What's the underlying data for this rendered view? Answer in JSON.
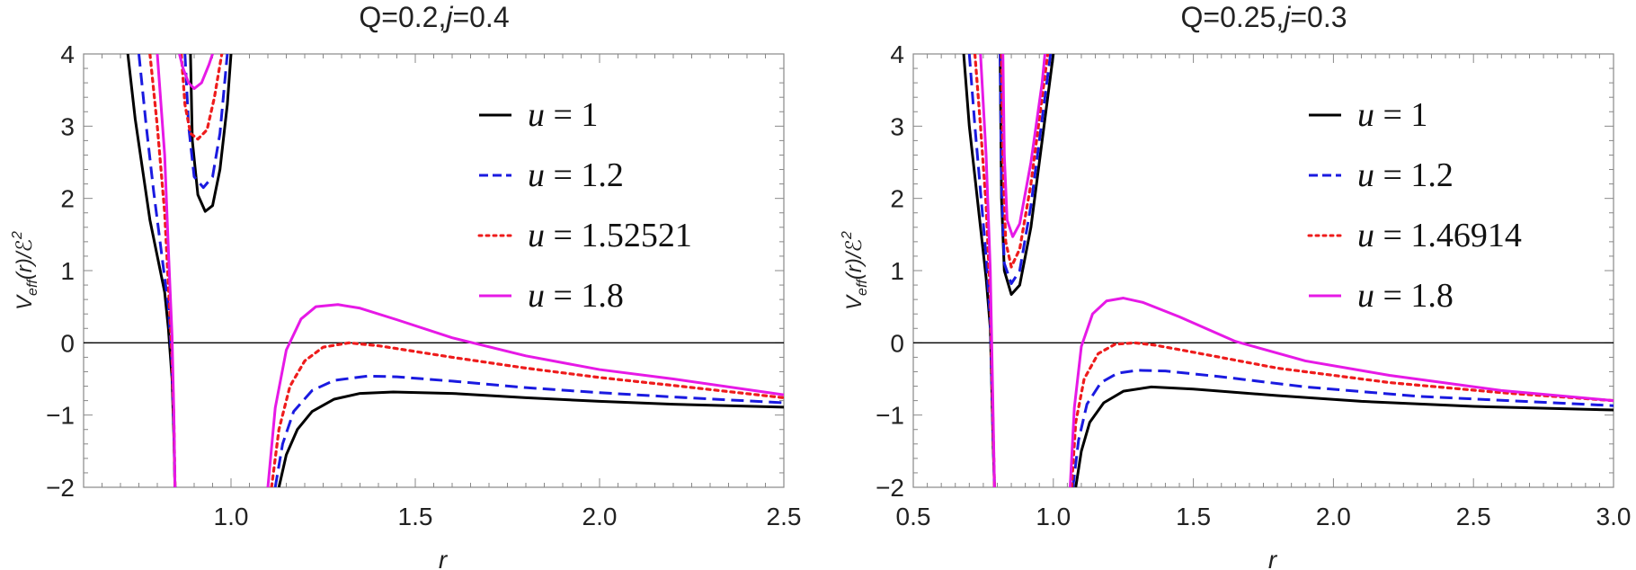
{
  "chart_data": [
    {
      "type": "line",
      "title": "Q=0.2, j=0.4",
      "title_parts": {
        "q": "Q=0.2,",
        "j": "j",
        "jval": "=0.4"
      },
      "xlabel": "r",
      "ylabel": "V_eff(r)/ℰ²",
      "xlim": [
        0.6,
        2.5
      ],
      "ylim": [
        -2,
        4
      ],
      "xticks": [
        "1.0",
        "1.5",
        "2.0",
        "2.5"
      ],
      "yticks": [
        "−2",
        "−1",
        "0",
        "1",
        "2",
        "3",
        "4"
      ],
      "legend_position": "top-right",
      "grid": false,
      "series": [
        {
          "name": "u = 1",
          "color": "#000000",
          "dash": "solid",
          "inner_branch": [
            [
              0.72,
              4.0
            ],
            [
              0.74,
              3.1
            ],
            [
              0.76,
              2.4
            ],
            [
              0.78,
              1.7
            ],
            [
              0.8,
              1.2
            ],
            [
              0.82,
              0.7
            ],
            [
              0.83,
              0.2
            ],
            [
              0.84,
              -0.5
            ],
            [
              0.845,
              -1.3
            ],
            [
              0.848,
              -2.0
            ]
          ],
          "well": [
            [
              0.89,
              4.0
            ],
            [
              0.895,
              2.8
            ],
            [
              0.91,
              2.05
            ],
            [
              0.93,
              1.82
            ],
            [
              0.95,
              1.9
            ],
            [
              0.97,
              2.4
            ],
            [
              0.99,
              3.3
            ],
            [
              1.0,
              4.0
            ]
          ],
          "outer_branch": [
            [
              1.13,
              -2.0
            ],
            [
              1.15,
              -1.55
            ],
            [
              1.18,
              -1.2
            ],
            [
              1.22,
              -0.95
            ],
            [
              1.28,
              -0.78
            ],
            [
              1.35,
              -0.7
            ],
            [
              1.44,
              -0.68
            ],
            [
              1.6,
              -0.7
            ],
            [
              1.8,
              -0.76
            ],
            [
              2.0,
              -0.81
            ],
            [
              2.2,
              -0.85
            ],
            [
              2.5,
              -0.89
            ]
          ]
        },
        {
          "name": "u = 1.2",
          "color": "#1a1ae0",
          "dash": "dashed",
          "inner_branch": [
            [
              0.75,
              4.0
            ],
            [
              0.77,
              3.0
            ],
            [
              0.79,
              2.1
            ],
            [
              0.81,
              1.3
            ],
            [
              0.83,
              0.5
            ],
            [
              0.84,
              -0.3
            ],
            [
              0.845,
              -1.2
            ],
            [
              0.848,
              -2.0
            ]
          ],
          "well": [
            [
              0.875,
              4.0
            ],
            [
              0.885,
              3.0
            ],
            [
              0.9,
              2.3
            ],
            [
              0.925,
              2.15
            ],
            [
              0.95,
              2.3
            ],
            [
              0.97,
              2.9
            ],
            [
              0.99,
              4.0
            ]
          ],
          "outer_branch": [
            [
              1.12,
              -2.0
            ],
            [
              1.14,
              -1.4
            ],
            [
              1.17,
              -0.95
            ],
            [
              1.22,
              -0.66
            ],
            [
              1.28,
              -0.52
            ],
            [
              1.37,
              -0.46
            ],
            [
              1.45,
              -0.47
            ],
            [
              1.6,
              -0.53
            ],
            [
              1.8,
              -0.62
            ],
            [
              2.0,
              -0.69
            ],
            [
              2.2,
              -0.75
            ],
            [
              2.5,
              -0.83
            ]
          ]
        },
        {
          "name": "u = 1.52521",
          "color": "#ee1c1c",
          "dash": "dotted",
          "inner_branch": [
            [
              0.78,
              4.0
            ],
            [
              0.8,
              3.0
            ],
            [
              0.82,
              1.8
            ],
            [
              0.83,
              0.8
            ],
            [
              0.84,
              -0.2
            ],
            [
              0.845,
              -1.1
            ],
            [
              0.848,
              -2.0
            ]
          ],
          "well": [
            [
              0.865,
              4.0
            ],
            [
              0.875,
              3.3
            ],
            [
              0.89,
              2.9
            ],
            [
              0.91,
              2.82
            ],
            [
              0.935,
              2.95
            ],
            [
              0.955,
              3.4
            ],
            [
              0.975,
              4.0
            ]
          ],
          "outer_branch": [
            [
              1.11,
              -2.0
            ],
            [
              1.13,
              -1.2
            ],
            [
              1.16,
              -0.6
            ],
            [
              1.2,
              -0.25
            ],
            [
              1.25,
              -0.06
            ],
            [
              1.32,
              0.0
            ],
            [
              1.4,
              -0.04
            ],
            [
              1.6,
              -0.2
            ],
            [
              1.8,
              -0.35
            ],
            [
              2.0,
              -0.48
            ],
            [
              2.2,
              -0.59
            ],
            [
              2.5,
              -0.76
            ]
          ]
        },
        {
          "name": "u = 1.8",
          "color": "#e619e6",
          "dash": "solid",
          "inner_branch": [
            [
              0.8,
              4.0
            ],
            [
              0.82,
              2.6
            ],
            [
              0.83,
              1.3
            ],
            [
              0.84,
              0.1
            ],
            [
              0.845,
              -1.0
            ],
            [
              0.848,
              -2.0
            ]
          ],
          "well": [
            [
              0.86,
              4.0
            ],
            [
              0.87,
              3.8
            ],
            [
              0.885,
              3.6
            ],
            [
              0.9,
              3.52
            ],
            [
              0.92,
              3.6
            ],
            [
              0.94,
              3.85
            ],
            [
              0.95,
              4.0
            ]
          ],
          "outer_branch": [
            [
              1.1,
              -2.0
            ],
            [
              1.12,
              -0.9
            ],
            [
              1.15,
              -0.1
            ],
            [
              1.19,
              0.33
            ],
            [
              1.23,
              0.5
            ],
            [
              1.29,
              0.53
            ],
            [
              1.35,
              0.48
            ],
            [
              1.45,
              0.32
            ],
            [
              1.6,
              0.07
            ],
            [
              1.8,
              -0.18
            ],
            [
              2.0,
              -0.37
            ],
            [
              2.2,
              -0.5
            ],
            [
              2.5,
              -0.72
            ]
          ]
        }
      ]
    },
    {
      "type": "line",
      "title": "Q=0.25, j=0.3",
      "title_parts": {
        "q": "Q=0.25,",
        "j": "j",
        "jval": "=0.3"
      },
      "xlabel": "r",
      "ylabel": "V_eff(r)/ℰ²",
      "xlim": [
        0.5,
        3.0
      ],
      "ylim": [
        -2,
        4
      ],
      "xticks": [
        "0.5",
        "1.0",
        "1.5",
        "2.0",
        "2.5",
        "3.0"
      ],
      "yticks": [
        "−2",
        "−1",
        "0",
        "1",
        "2",
        "3",
        "4"
      ],
      "legend_position": "top-right",
      "grid": false,
      "series": [
        {
          "name": "u = 1",
          "color": "#000000",
          "dash": "solid",
          "inner_branch": [
            [
              0.68,
              4.0
            ],
            [
              0.7,
              3.0
            ],
            [
              0.72,
              2.3
            ],
            [
              0.74,
              1.6
            ],
            [
              0.76,
              0.9
            ],
            [
              0.775,
              0.2
            ],
            [
              0.78,
              -0.6
            ],
            [
              0.785,
              -1.4
            ],
            [
              0.79,
              -2.0
            ]
          ],
          "well": [
            [
              0.81,
              4.0
            ],
            [
              0.815,
              2.0
            ],
            [
              0.825,
              1.0
            ],
            [
              0.85,
              0.67
            ],
            [
              0.88,
              0.8
            ],
            [
              0.92,
              1.6
            ],
            [
              0.96,
              2.8
            ],
            [
              1.0,
              4.0
            ]
          ],
          "outer_branch": [
            [
              1.08,
              -2.0
            ],
            [
              1.1,
              -1.5
            ],
            [
              1.13,
              -1.1
            ],
            [
              1.18,
              -0.83
            ],
            [
              1.25,
              -0.67
            ],
            [
              1.35,
              -0.61
            ],
            [
              1.5,
              -0.64
            ],
            [
              1.8,
              -0.73
            ],
            [
              2.1,
              -0.81
            ],
            [
              2.5,
              -0.88
            ],
            [
              3.0,
              -0.93
            ]
          ]
        },
        {
          "name": "u = 1.2",
          "color": "#1a1ae0",
          "dash": "dashed",
          "inner_branch": [
            [
              0.7,
              4.0
            ],
            [
              0.72,
              3.0
            ],
            [
              0.74,
              2.1
            ],
            [
              0.76,
              1.2
            ],
            [
              0.775,
              0.3
            ],
            [
              0.78,
              -0.5
            ],
            [
              0.785,
              -1.3
            ],
            [
              0.79,
              -2.0
            ]
          ],
          "well": [
            [
              0.81,
              4.0
            ],
            [
              0.815,
              2.2
            ],
            [
              0.825,
              1.1
            ],
            [
              0.85,
              0.82
            ],
            [
              0.88,
              1.0
            ],
            [
              0.92,
              1.9
            ],
            [
              0.96,
              3.1
            ],
            [
              0.99,
              4.0
            ]
          ],
          "outer_branch": [
            [
              1.07,
              -2.0
            ],
            [
              1.09,
              -1.35
            ],
            [
              1.12,
              -0.85
            ],
            [
              1.17,
              -0.55
            ],
            [
              1.23,
              -0.42
            ],
            [
              1.3,
              -0.38
            ],
            [
              1.4,
              -0.39
            ],
            [
              1.6,
              -0.47
            ],
            [
              1.9,
              -0.61
            ],
            [
              2.3,
              -0.74
            ],
            [
              3.0,
              -0.87
            ]
          ]
        },
        {
          "name": "u = 1.46914",
          "color": "#ee1c1c",
          "dash": "dotted",
          "inner_branch": [
            [
              0.72,
              4.0
            ],
            [
              0.74,
              3.0
            ],
            [
              0.76,
              1.9
            ],
            [
              0.775,
              0.6
            ],
            [
              0.78,
              -0.3
            ],
            [
              0.785,
              -1.2
            ],
            [
              0.79,
              -2.0
            ]
          ],
          "well": [
            [
              0.815,
              4.0
            ],
            [
              0.82,
              2.5
            ],
            [
              0.83,
              1.4
            ],
            [
              0.85,
              1.05
            ],
            [
              0.88,
              1.3
            ],
            [
              0.92,
              2.2
            ],
            [
              0.96,
              3.4
            ],
            [
              0.98,
              4.0
            ]
          ],
          "outer_branch": [
            [
              1.065,
              -2.0
            ],
            [
              1.08,
              -1.1
            ],
            [
              1.11,
              -0.5
            ],
            [
              1.16,
              -0.15
            ],
            [
              1.22,
              -0.02
            ],
            [
              1.29,
              0.0
            ],
            [
              1.36,
              -0.03
            ],
            [
              1.5,
              -0.13
            ],
            [
              1.8,
              -0.35
            ],
            [
              2.2,
              -0.55
            ],
            [
              2.6,
              -0.69
            ],
            [
              3.0,
              -0.8
            ]
          ]
        },
        {
          "name": "u = 1.8",
          "color": "#e619e6",
          "dash": "solid",
          "inner_branch": [
            [
              0.74,
              4.0
            ],
            [
              0.76,
              2.6
            ],
            [
              0.775,
              1.0
            ],
            [
              0.78,
              0.0
            ],
            [
              0.785,
              -1.0
            ],
            [
              0.79,
              -2.0
            ]
          ],
          "well": [
            [
              0.82,
              4.0
            ],
            [
              0.825,
              2.6
            ],
            [
              0.835,
              1.7
            ],
            [
              0.855,
              1.47
            ],
            [
              0.88,
              1.65
            ],
            [
              0.92,
              2.5
            ],
            [
              0.96,
              3.6
            ],
            [
              0.97,
              4.0
            ]
          ],
          "outer_branch": [
            [
              1.06,
              -2.0
            ],
            [
              1.075,
              -0.9
            ],
            [
              1.1,
              -0.05
            ],
            [
              1.14,
              0.4
            ],
            [
              1.19,
              0.58
            ],
            [
              1.25,
              0.62
            ],
            [
              1.32,
              0.56
            ],
            [
              1.45,
              0.36
            ],
            [
              1.65,
              0.02
            ],
            [
              1.9,
              -0.25
            ],
            [
              2.2,
              -0.45
            ],
            [
              2.6,
              -0.66
            ],
            [
              3.0,
              -0.8
            ]
          ]
        }
      ]
    }
  ]
}
